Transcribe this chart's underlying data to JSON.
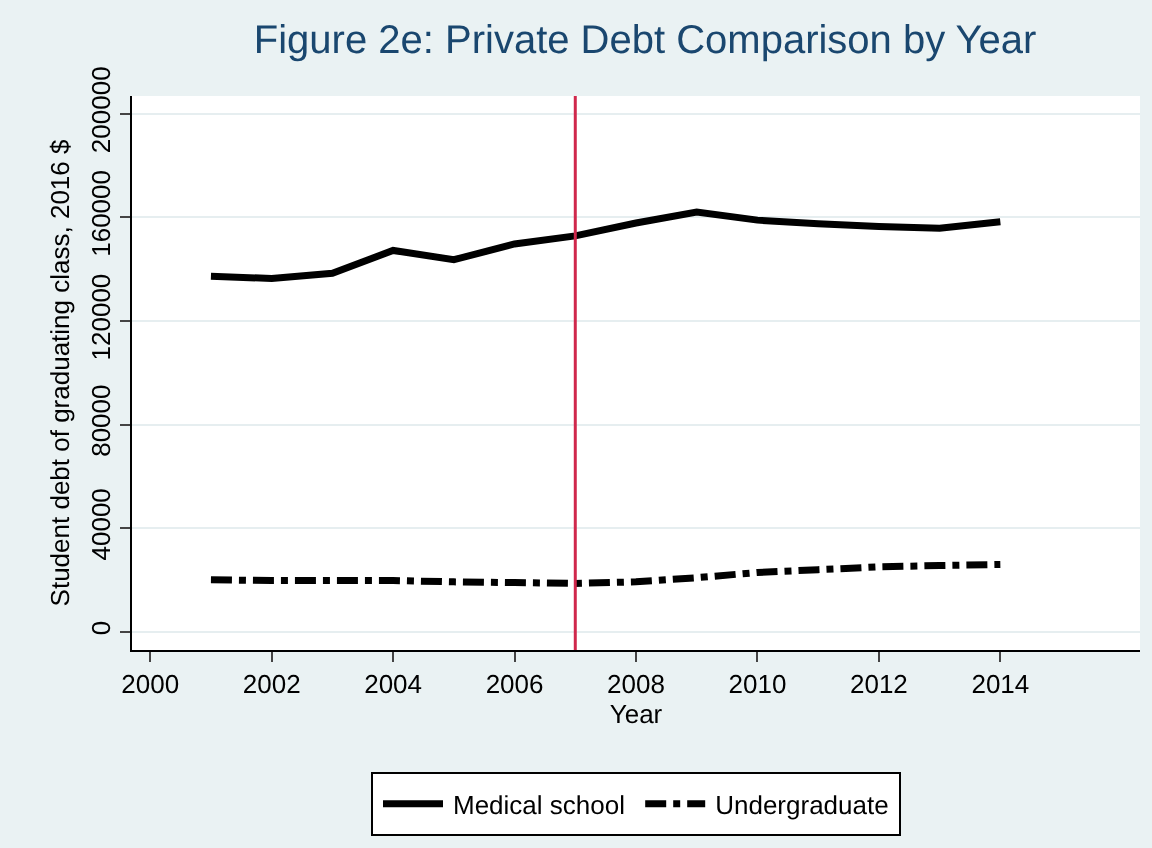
{
  "chart_data": {
    "type": "line",
    "title": "Figure 2e: Private Debt Comparison by Year",
    "xlabel": "Year",
    "ylabel": "Student debt of graduating class, 2016 $",
    "x": [
      2001,
      2002,
      2003,
      2004,
      2005,
      2006,
      2007,
      2008,
      2009,
      2010,
      2011,
      2012,
      2013,
      2014
    ],
    "series": [
      {
        "name": "Medical school",
        "color": "#000000",
        "line_style": "solid",
        "values": [
          137200,
          136400,
          138400,
          147200,
          143600,
          149700,
          152800,
          157800,
          162000,
          158900,
          157500,
          156400,
          155800,
          158300
        ]
      },
      {
        "name": "Undergraduate",
        "color": "#000000",
        "line_style": "dashdot",
        "values": [
          20100,
          19800,
          19800,
          19800,
          19300,
          19000,
          18700,
          19300,
          20900,
          22900,
          24000,
          25100,
          25600,
          26000
        ]
      }
    ],
    "xlim": [
      1999.7,
      2016.3
    ],
    "xticks": [
      2000,
      2002,
      2004,
      2006,
      2008,
      2010,
      2012,
      2014
    ],
    "ylim": [
      -7000,
      206800
    ],
    "yticks": [
      0,
      40000,
      80000,
      120000,
      160000,
      200000
    ],
    "ref_lines": [
      {
        "axis": "x",
        "value": 2007,
        "color": "#d0284c"
      }
    ],
    "grid": "y",
    "legend": "bottom",
    "marker": "none"
  }
}
